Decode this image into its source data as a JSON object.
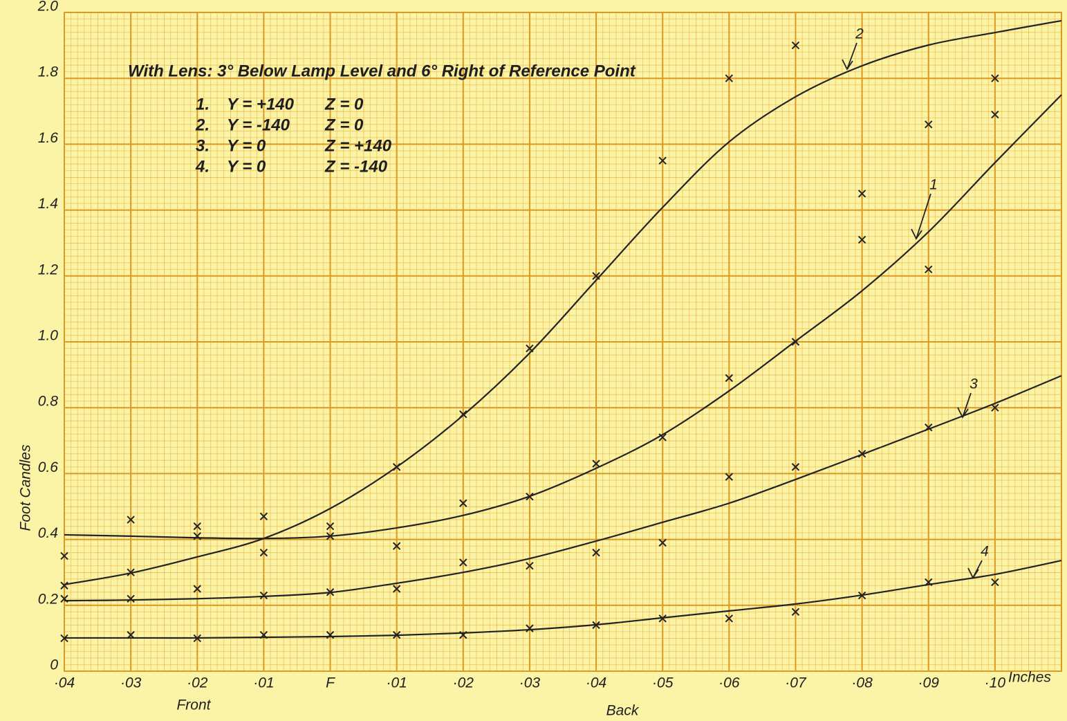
{
  "chart_data": {
    "type": "line",
    "title": "With Lens: 3° Below Lamp Level and 6° Right of Reference Point",
    "legend_rows": [
      [
        "1.",
        "Y = +140",
        "Z = 0"
      ],
      [
        "2.",
        "Y = -140",
        "Z = 0"
      ],
      [
        "3.",
        "Y = 0",
        "Z = +140"
      ],
      [
        "4.",
        "Y = 0",
        "Z = -140"
      ]
    ],
    "y_label": "Foot Candles",
    "x_unit": "Inches",
    "x_group_labels": [
      "Front",
      "Back"
    ],
    "xlim": [
      -0.04,
      0.11
    ],
    "ylim": [
      0,
      2
    ],
    "xticks": [
      {
        "value": -0.04,
        "label": "·04"
      },
      {
        "value": -0.03,
        "label": "·03"
      },
      {
        "value": -0.02,
        "label": "·02"
      },
      {
        "value": -0.01,
        "label": "·01"
      },
      {
        "value": 0,
        "label": "F"
      },
      {
        "value": 0.01,
        "label": "·01"
      },
      {
        "value": 0.02,
        "label": "·02"
      },
      {
        "value": 0.03,
        "label": "·03"
      },
      {
        "value": 0.04,
        "label": "·04"
      },
      {
        "value": 0.05,
        "label": "·05"
      },
      {
        "value": 0.06,
        "label": "·06"
      },
      {
        "value": 0.07,
        "label": "·07"
      },
      {
        "value": 0.08,
        "label": "·08"
      },
      {
        "value": 0.09,
        "label": "·09"
      },
      {
        "value": 0.1,
        "label": "·10"
      }
    ],
    "yticks": [
      0,
      0.2,
      0.4,
      0.6,
      0.8,
      {
        "value": 1,
        "label": "1.0"
      },
      1.2,
      1.4,
      1.6,
      1.8,
      {
        "value": 2,
        "label": "2.0"
      }
    ],
    "x": [
      -0.04,
      -0.03,
      -0.02,
      -0.01,
      0,
      0.01,
      0.02,
      0.03,
      0.04,
      0.05,
      0.06,
      0.07,
      0.08,
      0.09,
      0.1,
      0.11
    ],
    "series": [
      {
        "name": "1",
        "color": "#222222",
        "values": [
          0.414,
          0.41,
          0.405,
          0.403,
          0.41,
          0.435,
          0.473,
          0.531,
          0.616,
          0.718,
          0.851,
          1.002,
          1.155,
          1.334,
          1.544,
          1.75
        ]
      },
      {
        "name": "2",
        "color": "#222222",
        "values": [
          0.263,
          0.298,
          0.347,
          0.403,
          0.494,
          0.62,
          0.777,
          0.966,
          1.187,
          1.408,
          1.607,
          1.744,
          1.838,
          1.901,
          1.939,
          1.975
        ]
      },
      {
        "name": "3",
        "color": "#222222",
        "values": [
          0.214,
          0.216,
          0.22,
          0.227,
          0.239,
          0.267,
          0.3,
          0.342,
          0.395,
          0.452,
          0.51,
          0.582,
          0.658,
          0.735,
          0.813,
          0.897
        ]
      },
      {
        "name": "4",
        "color": "#222222",
        "values": [
          0.101,
          0.101,
          0.101,
          0.103,
          0.105,
          0.109,
          0.116,
          0.126,
          0.141,
          0.162,
          0.183,
          0.204,
          0.231,
          0.263,
          0.294,
          0.336
        ]
      }
    ],
    "markers": {
      "color": "#222222",
      "x": [
        -0.04,
        -0.04,
        -0.04,
        -0.04,
        -0.03,
        -0.03,
        -0.03,
        -0.03,
        -0.02,
        -0.02,
        -0.02,
        -0.02,
        -0.01,
        -0.01,
        -0.01,
        -0.01,
        0,
        0,
        0,
        0,
        0.01,
        0.01,
        0.01,
        0.01,
        0.02,
        0.02,
        0.02,
        0.02,
        0.03,
        0.03,
        0.03,
        0.03,
        0.04,
        0.04,
        0.04,
        0.04,
        0.05,
        0.05,
        0.05,
        0.05,
        0.06,
        0.06,
        0.06,
        0.06,
        0.07,
        0.07,
        0.07,
        0.07,
        0.08,
        0.08,
        0.08,
        0.08,
        0.09,
        0.09,
        0.09,
        0.09,
        0.1,
        0.1,
        0.1,
        0.1
      ],
      "values": [
        0.35,
        0.26,
        0.22,
        0.1,
        0.46,
        0.3,
        0.22,
        0.11,
        0.44,
        0.41,
        0.25,
        0.1,
        0.47,
        0.36,
        0.23,
        0.11,
        0.44,
        0.41,
        0.24,
        0.11,
        0.62,
        0.38,
        0.25,
        0.11,
        0.78,
        0.51,
        0.33,
        0.11,
        0.98,
        0.53,
        0.32,
        0.13,
        1.2,
        0.63,
        0.36,
        0.14,
        1.55,
        0.71,
        0.39,
        0.16,
        1.8,
        0.89,
        0.59,
        0.16,
        1.9,
        1.0,
        0.62,
        0.18,
        1.45,
        1.31,
        0.66,
        0.23,
        1.66,
        1.22,
        0.74,
        0.27,
        1.8,
        1.69,
        0.8,
        0.27
      ]
    },
    "grid": true
  }
}
